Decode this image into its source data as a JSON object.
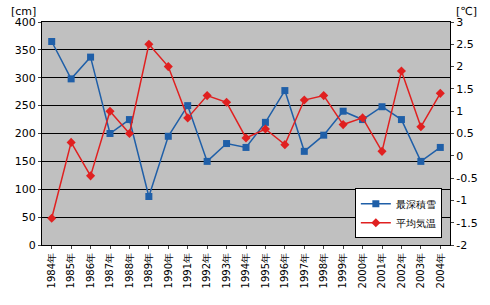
{
  "chart_data": {
    "type": "line",
    "ylabel": "[cm]",
    "y2label": "[℃]",
    "categories": [
      "1984年",
      "1985年",
      "1986年",
      "1987年",
      "1988年",
      "1989年",
      "1990年",
      "1991年",
      "1992年",
      "1993年",
      "1994年",
      "1995年",
      "1996年",
      "1997年",
      "1998年",
      "1999年",
      "2000年",
      "2001年",
      "2002年",
      "2003年",
      "2004年"
    ],
    "series": [
      {
        "name": "最深積雪",
        "color": "#1f5fa8",
        "marker": "square",
        "values": [
          365,
          298,
          337,
          200,
          225,
          87,
          195,
          250,
          150,
          182,
          175,
          220,
          277,
          168,
          197,
          240,
          225,
          248,
          225,
          150,
          175
        ]
      },
      {
        "name": "平均気温",
        "color": "#e02020",
        "marker": "diamond",
        "axis": "y2",
        "values": [
          -1.4,
          0.3,
          -0.45,
          1.0,
          0.5,
          2.5,
          2.0,
          0.85,
          1.35,
          1.2,
          0.4,
          0.6,
          0.25,
          1.25,
          1.35,
          0.7,
          0.85,
          0.1,
          1.9,
          0.65,
          1.4
        ]
      }
    ],
    "ylim": [
      0,
      400
    ],
    "yticks": [
      0,
      50,
      100,
      150,
      200,
      250,
      300,
      350,
      400
    ],
    "y2lim": [
      -2,
      3
    ],
    "y2ticks": [
      -2,
      -1.5,
      -1,
      -0.5,
      0,
      0.5,
      1,
      1.5,
      2,
      2.5,
      3
    ],
    "grid": true,
    "legend": "lower right"
  }
}
